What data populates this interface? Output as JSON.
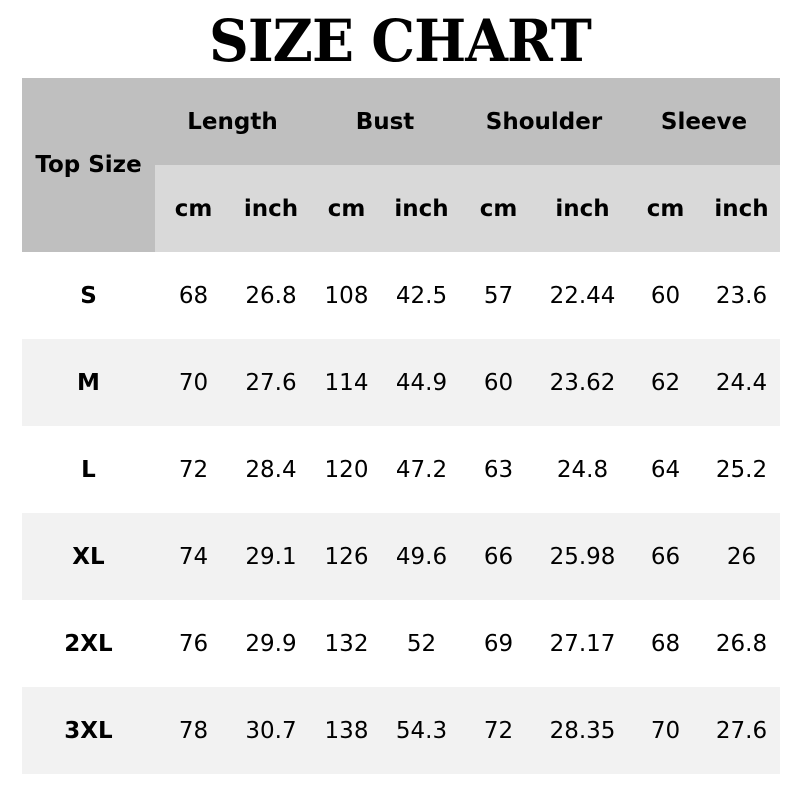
{
  "title": "SIZE CHART",
  "table": {
    "size_header": "Top Size",
    "groups": [
      "Length",
      "Bust",
      "Shoulder",
      "Sleeve"
    ],
    "units": [
      "cm",
      "inch",
      "cm",
      "inch",
      "cm",
      "inch",
      "cm",
      "inch"
    ],
    "rows": [
      {
        "size": "S",
        "values": [
          "68",
          "26.8",
          "108",
          "42.5",
          "57",
          "22.44",
          "60",
          "23.6"
        ]
      },
      {
        "size": "M",
        "values": [
          "70",
          "27.6",
          "114",
          "44.9",
          "60",
          "23.62",
          "62",
          "24.4"
        ]
      },
      {
        "size": "L",
        "values": [
          "72",
          "28.4",
          "120",
          "47.2",
          "63",
          "24.8",
          "64",
          "25.2"
        ]
      },
      {
        "size": "XL",
        "values": [
          "74",
          "29.1",
          "126",
          "49.6",
          "66",
          "25.98",
          "66",
          "26"
        ]
      },
      {
        "size": "2XL",
        "values": [
          "76",
          "29.9",
          "132",
          "52",
          "69",
          "27.17",
          "68",
          "26.8"
        ]
      },
      {
        "size": "3XL",
        "values": [
          "78",
          "30.7",
          "138",
          "54.3",
          "72",
          "28.35",
          "70",
          "27.6"
        ]
      }
    ]
  },
  "colors": {
    "header": "#bfbfbf",
    "subheader": "#d9d9d9",
    "row_alt": "#f2f2f2"
  }
}
